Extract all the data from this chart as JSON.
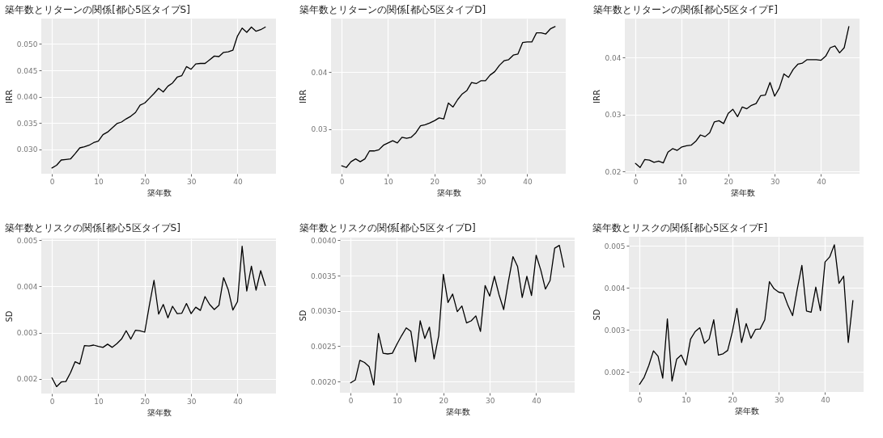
{
  "chart_data": [
    {
      "type": "line",
      "title": "築年数とリターンの関係[都心5区タイプS]",
      "xlabel": "築年数",
      "ylabel": "IRR",
      "grid": true,
      "xlim": [
        -2.3,
        48.3
      ],
      "xticks": [
        0,
        10,
        20,
        30,
        40
      ],
      "ylim": [
        0.0254,
        0.0548
      ],
      "yticks": [
        {
          "value": 0.03,
          "label": "0.030"
        },
        {
          "value": 0.035,
          "label": "0.035"
        },
        {
          "value": 0.04,
          "label": "0.040"
        },
        {
          "value": 0.045,
          "label": "0.045"
        },
        {
          "value": 0.05,
          "label": "0.050"
        }
      ],
      "x": [
        0,
        1,
        2,
        3,
        4,
        5,
        6,
        7,
        8,
        9,
        10,
        11,
        12,
        13,
        14,
        15,
        16,
        17,
        18,
        19,
        20,
        21,
        22,
        23,
        24,
        25,
        26,
        27,
        28,
        29,
        30,
        31,
        32,
        33,
        34,
        35,
        36,
        37,
        38,
        39,
        40,
        41,
        42,
        43,
        44,
        45,
        46
      ],
      "series": [
        {
          "color": "#000000",
          "values": [
            0.0265,
            0.027,
            0.028,
            0.0281,
            0.0282,
            0.0292,
            0.0303,
            0.0305,
            0.0308,
            0.0313,
            0.0316,
            0.0328,
            0.0333,
            0.0341,
            0.0349,
            0.0352,
            0.0358,
            0.0363,
            0.037,
            0.0384,
            0.0388,
            0.0397,
            0.0406,
            0.0416,
            0.0409,
            0.042,
            0.0426,
            0.0437,
            0.044,
            0.0457,
            0.0452,
            0.0462,
            0.0463,
            0.0463,
            0.047,
            0.0477,
            0.0476,
            0.0484,
            0.0485,
            0.0488,
            0.0515,
            0.053,
            0.0522,
            0.0532,
            0.0524,
            0.0527,
            0.0532
          ]
        }
      ]
    },
    {
      "type": "line",
      "title": "築年数とリターンの関係[都心5区タイプD]",
      "xlabel": "築年数",
      "ylabel": "IRR",
      "grid": true,
      "xlim": [
        -2.3,
        48.3
      ],
      "xticks": [
        0,
        10,
        20,
        30,
        40
      ],
      "ylim": [
        0.0222,
        0.0494
      ],
      "yticks": [
        0.03,
        0.04
      ],
      "x": [
        0,
        1,
        2,
        3,
        4,
        5,
        6,
        7,
        8,
        9,
        10,
        11,
        12,
        13,
        14,
        15,
        16,
        17,
        18,
        19,
        20,
        21,
        22,
        23,
        24,
        25,
        26,
        27,
        28,
        29,
        30,
        31,
        32,
        33,
        34,
        35,
        36,
        37,
        38,
        39,
        40,
        41,
        42,
        43,
        44,
        45,
        46
      ],
      "series": [
        {
          "color": "#000000",
          "values": [
            0.0236,
            0.0233,
            0.0243,
            0.0248,
            0.0243,
            0.0248,
            0.0262,
            0.0262,
            0.0264,
            0.0272,
            0.0276,
            0.028,
            0.0276,
            0.0286,
            0.0284,
            0.0286,
            0.0294,
            0.0306,
            0.0308,
            0.0311,
            0.0315,
            0.032,
            0.0318,
            0.0346,
            0.0339,
            0.0352,
            0.0362,
            0.0368,
            0.0382,
            0.038,
            0.0385,
            0.0385,
            0.0395,
            0.0401,
            0.0412,
            0.042,
            0.0422,
            0.043,
            0.0432,
            0.0452,
            0.0453,
            0.0453,
            0.0469,
            0.0469,
            0.0467,
            0.0476,
            0.048
          ]
        }
      ]
    },
    {
      "type": "line",
      "title": "築年数とリターンの関係[都心5区タイプF]",
      "xlabel": "築年数",
      "ylabel": "IRR",
      "grid": true,
      "xlim": [
        -2.3,
        48.3
      ],
      "xticks": [
        0,
        10,
        20,
        30,
        40
      ],
      "ylim": [
        0.0196,
        0.0468
      ],
      "yticks": [
        0.02,
        0.03,
        0.04
      ],
      "x": [
        0,
        1,
        2,
        3,
        4,
        5,
        6,
        7,
        8,
        9,
        10,
        11,
        12,
        13,
        14,
        15,
        16,
        17,
        18,
        19,
        20,
        21,
        22,
        23,
        24,
        25,
        26,
        27,
        28,
        29,
        30,
        31,
        32,
        33,
        34,
        35,
        36,
        37,
        38,
        39,
        40,
        41,
        42,
        43,
        44,
        45,
        46
      ],
      "series": [
        {
          "color": "#000000",
          "values": [
            0.0214,
            0.0207,
            0.0221,
            0.022,
            0.0216,
            0.0218,
            0.0215,
            0.0234,
            0.024,
            0.0237,
            0.0243,
            0.0245,
            0.0246,
            0.0253,
            0.0264,
            0.0261,
            0.0268,
            0.0287,
            0.0289,
            0.0284,
            0.0302,
            0.0309,
            0.0296,
            0.0313,
            0.031,
            0.0316,
            0.0319,
            0.0333,
            0.0334,
            0.0356,
            0.0332,
            0.0346,
            0.0371,
            0.0365,
            0.0379,
            0.0388,
            0.039,
            0.0396,
            0.0396,
            0.0396,
            0.0395,
            0.0402,
            0.0417,
            0.042,
            0.0408,
            0.0417,
            0.0454
          ]
        }
      ]
    },
    {
      "type": "line",
      "title": "築年数とリスクの関係[都心5区タイプS]",
      "xlabel": "築年数",
      "ylabel": "SD",
      "grid": true,
      "xlim": [
        -2.3,
        48.3
      ],
      "xticks": [
        0,
        10,
        20,
        30,
        40
      ],
      "ylim": [
        0.00168,
        0.00504
      ],
      "yticks": [
        0.002,
        0.003,
        0.004,
        0.005
      ],
      "x": [
        0,
        1,
        2,
        3,
        4,
        5,
        6,
        7,
        8,
        9,
        10,
        11,
        12,
        13,
        14,
        15,
        16,
        17,
        18,
        19,
        20,
        21,
        22,
        23,
        24,
        25,
        26,
        27,
        28,
        29,
        30,
        31,
        32,
        33,
        34,
        35,
        36,
        37,
        38,
        39,
        40,
        41,
        42,
        43,
        44,
        45,
        46
      ],
      "series": [
        {
          "color": "#000000",
          "values": [
            0.00202,
            0.00183,
            0.00193,
            0.00194,
            0.00213,
            0.00237,
            0.00232,
            0.00272,
            0.00271,
            0.00273,
            0.0027,
            0.00268,
            0.00275,
            0.00268,
            0.00276,
            0.00286,
            0.00304,
            0.00286,
            0.00305,
            0.00304,
            0.00301,
            0.00359,
            0.00413,
            0.0034,
            0.00361,
            0.00332,
            0.00357,
            0.00341,
            0.00342,
            0.00363,
            0.00341,
            0.00355,
            0.00348,
            0.00378,
            0.00361,
            0.0035,
            0.00359,
            0.00419,
            0.00393,
            0.00349,
            0.00367,
            0.00487,
            0.0039,
            0.00444,
            0.00392,
            0.00434,
            0.00402
          ]
        }
      ]
    },
    {
      "type": "line",
      "title": "築年数とリスクの関係[都心5区タイプD]",
      "xlabel": "築年数",
      "ylabel": "SD",
      "grid": true,
      "xlim": [
        -2.3,
        48.3
      ],
      "xticks": [
        0,
        10,
        20,
        30,
        40
      ],
      "ylim": [
        0.00184,
        0.00404
      ],
      "yticks": [
        {
          "value": 0.002,
          "label": "0.0020"
        },
        {
          "value": 0.0025,
          "label": "0.0025"
        },
        {
          "value": 0.003,
          "label": "0.0030"
        },
        {
          "value": 0.0035,
          "label": "0.0035"
        },
        {
          "value": 0.004,
          "label": "0.0040"
        }
      ],
      "x": [
        0,
        1,
        2,
        3,
        4,
        5,
        6,
        7,
        8,
        9,
        10,
        11,
        12,
        13,
        14,
        15,
        16,
        17,
        18,
        19,
        20,
        21,
        22,
        23,
        24,
        25,
        26,
        27,
        28,
        29,
        30,
        31,
        32,
        33,
        34,
        35,
        36,
        37,
        38,
        39,
        40,
        41,
        42,
        43,
        44,
        45,
        46
      ],
      "series": [
        {
          "color": "#000000",
          "values": [
            0.00198,
            0.00202,
            0.0023,
            0.00227,
            0.00221,
            0.00195,
            0.00268,
            0.0024,
            0.00239,
            0.0024,
            0.00253,
            0.00265,
            0.00276,
            0.00271,
            0.00228,
            0.00286,
            0.00261,
            0.00277,
            0.00232,
            0.00265,
            0.00352,
            0.00312,
            0.00324,
            0.00299,
            0.00307,
            0.00283,
            0.00286,
            0.00293,
            0.00271,
            0.00336,
            0.00321,
            0.00349,
            0.00323,
            0.00302,
            0.00341,
            0.00377,
            0.00363,
            0.00319,
            0.00349,
            0.00322,
            0.00379,
            0.00358,
            0.00331,
            0.00343,
            0.00389,
            0.00393,
            0.00362
          ]
        }
      ]
    },
    {
      "type": "line",
      "title": "築年数とリスクの関係[都心5区タイプF]",
      "xlabel": "築年数",
      "ylabel": "SD",
      "grid": true,
      "xlim": [
        -2.3,
        48.3
      ],
      "xticks": [
        0,
        10,
        20,
        30,
        40
      ],
      "ylim": [
        0.00152,
        0.00522
      ],
      "yticks": [
        0.002,
        0.003,
        0.004,
        0.005
      ],
      "x": [
        0,
        1,
        2,
        3,
        4,
        5,
        6,
        7,
        8,
        9,
        10,
        11,
        12,
        13,
        14,
        15,
        16,
        17,
        18,
        19,
        20,
        21,
        22,
        23,
        24,
        25,
        26,
        27,
        28,
        29,
        30,
        31,
        32,
        33,
        34,
        35,
        36,
        37,
        38,
        39,
        40,
        41,
        42,
        43,
        44,
        45,
        46
      ],
      "series": [
        {
          "color": "#000000",
          "values": [
            0.0017,
            0.00187,
            0.00215,
            0.0025,
            0.00237,
            0.00185,
            0.00326,
            0.00178,
            0.0023,
            0.0024,
            0.00216,
            0.00278,
            0.00296,
            0.00305,
            0.00268,
            0.00278,
            0.00324,
            0.0024,
            0.00243,
            0.00251,
            0.00295,
            0.00351,
            0.0027,
            0.00315,
            0.0028,
            0.00301,
            0.00302,
            0.00324,
            0.00415,
            0.00398,
            0.0039,
            0.00388,
            0.00358,
            0.00334,
            0.00397,
            0.00454,
            0.00345,
            0.00342,
            0.00402,
            0.00346,
            0.00462,
            0.00474,
            0.00503,
            0.00411,
            0.00428,
            0.0027,
            0.0037
          ]
        }
      ]
    }
  ]
}
